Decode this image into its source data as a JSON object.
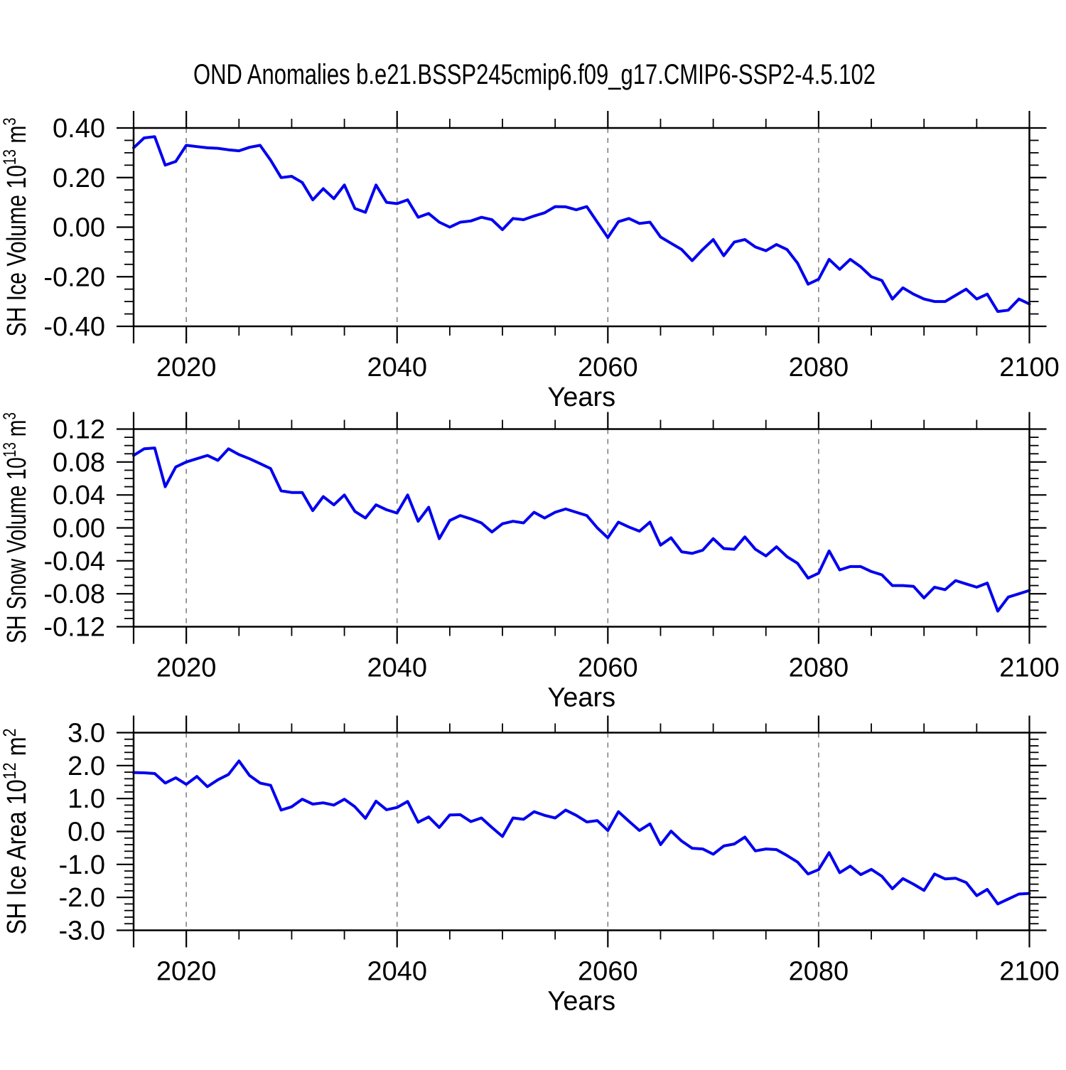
{
  "title": "OND Anomalies b.e21.BSSP245cmip6.f09_g17.CMIP6-SSP2-4.5.102",
  "colors": {
    "line": "#0000EE",
    "axis": "#000000",
    "grid": "#7a7a7a",
    "background": "#ffffff"
  },
  "x_axis": {
    "label": "Years",
    "range": [
      2015,
      2100
    ],
    "major_ticks": [
      2020,
      2040,
      2060,
      2080,
      2100
    ],
    "minor_step": 5,
    "gridlines": [
      2020,
      2040,
      2060,
      2080
    ]
  },
  "chart_data": [
    {
      "type": "line",
      "id": "ice-volume",
      "ylabel": "SH Ice Volume 10^{13} m^{3}",
      "ylim": [
        -0.4,
        0.4
      ],
      "ytick_values": [
        0.4,
        0.2,
        0.0,
        -0.2,
        -0.4
      ],
      "ytick_labels": [
        "0.40",
        "0.20",
        "0.00",
        "-0.20",
        "-0.40"
      ],
      "yminor_step": 0.05,
      "x_start": 2015,
      "x_step": 1,
      "values": [
        0.32,
        0.36,
        0.365,
        0.25,
        0.265,
        0.33,
        0.325,
        0.32,
        0.318,
        0.312,
        0.308,
        0.322,
        0.33,
        0.27,
        0.2,
        0.205,
        0.18,
        0.11,
        0.155,
        0.115,
        0.17,
        0.075,
        0.06,
        0.17,
        0.1,
        0.095,
        0.11,
        0.04,
        0.055,
        0.02,
        0.0,
        0.02,
        0.025,
        0.04,
        0.03,
        -0.01,
        0.035,
        0.03,
        0.045,
        0.058,
        0.083,
        0.082,
        0.07,
        0.083,
        0.02,
        -0.042,
        0.022,
        0.035,
        0.015,
        0.02,
        -0.04,
        -0.065,
        -0.09,
        -0.135,
        -0.09,
        -0.05,
        -0.115,
        -0.06,
        -0.05,
        -0.08,
        -0.095,
        -0.07,
        -0.09,
        -0.145,
        -0.23,
        -0.21,
        -0.13,
        -0.17,
        -0.13,
        -0.16,
        -0.2,
        -0.215,
        -0.29,
        -0.245,
        -0.27,
        -0.29,
        -0.3,
        -0.3,
        -0.275,
        -0.25,
        -0.29,
        -0.27,
        -0.34,
        -0.335,
        -0.29,
        -0.31
      ]
    },
    {
      "type": "line",
      "id": "snow-volume",
      "ylabel": "SH Snow Volume 10^{13} m^{3}",
      "ylim": [
        -0.12,
        0.12
      ],
      "ytick_values": [
        0.12,
        0.08,
        0.04,
        0.0,
        -0.04,
        -0.08,
        -0.12
      ],
      "ytick_labels": [
        "0.12",
        "0.08",
        "0.04",
        "0.00",
        "-0.04",
        "-0.08",
        "-0.12"
      ],
      "yminor_step": 0.01,
      "x_start": 2015,
      "x_step": 1,
      "values": [
        0.088,
        0.096,
        0.097,
        0.05,
        0.074,
        0.08,
        0.084,
        0.088,
        0.082,
        0.096,
        0.089,
        0.084,
        0.078,
        0.072,
        0.045,
        0.043,
        0.043,
        0.021,
        0.038,
        0.028,
        0.04,
        0.02,
        0.012,
        0.028,
        0.022,
        0.018,
        0.04,
        0.008,
        0.025,
        -0.013,
        0.009,
        0.015,
        0.011,
        0.006,
        -0.005,
        0.005,
        0.008,
        0.006,
        0.019,
        0.012,
        0.019,
        0.023,
        0.019,
        0.015,
        0.0,
        -0.012,
        0.007,
        0.001,
        -0.004,
        0.007,
        -0.021,
        -0.012,
        -0.029,
        -0.031,
        -0.027,
        -0.013,
        -0.025,
        -0.026,
        -0.011,
        -0.026,
        -0.034,
        -0.023,
        -0.035,
        -0.043,
        -0.061,
        -0.055,
        -0.028,
        -0.051,
        -0.047,
        -0.047,
        -0.053,
        -0.057,
        -0.07,
        -0.07,
        -0.071,
        -0.085,
        -0.072,
        -0.075,
        -0.064,
        -0.068,
        -0.072,
        -0.067,
        -0.101,
        -0.084,
        -0.08,
        -0.076
      ]
    },
    {
      "type": "line",
      "id": "ice-area",
      "ylabel": "SH Ice Area 10^{12} m^{2}",
      "ylim": [
        -3.0,
        3.0
      ],
      "ytick_values": [
        3.0,
        2.0,
        1.0,
        0.0,
        -1.0,
        -2.0,
        -3.0
      ],
      "ytick_labels": [
        "3.0",
        "2.0",
        "1.0",
        "0.0",
        "-1.0",
        "-2.0",
        "-3.0"
      ],
      "yminor_step": 0.2,
      "x_start": 2015,
      "x_step": 1,
      "values": [
        1.79,
        1.78,
        1.76,
        1.47,
        1.63,
        1.43,
        1.67,
        1.36,
        1.57,
        1.73,
        2.14,
        1.7,
        1.47,
        1.4,
        0.65,
        0.75,
        0.98,
        0.83,
        0.87,
        0.8,
        0.98,
        0.75,
        0.4,
        0.92,
        0.66,
        0.73,
        0.91,
        0.28,
        0.44,
        0.12,
        0.5,
        0.51,
        0.3,
        0.41,
        0.12,
        -0.15,
        0.41,
        0.37,
        0.6,
        0.49,
        0.41,
        0.65,
        0.49,
        0.29,
        0.33,
        0.03,
        0.6,
        0.31,
        0.03,
        0.23,
        -0.4,
        0.01,
        -0.29,
        -0.51,
        -0.53,
        -0.69,
        -0.44,
        -0.38,
        -0.17,
        -0.59,
        -0.53,
        -0.55,
        -0.73,
        -0.93,
        -1.29,
        -1.16,
        -0.64,
        -1.25,
        -1.05,
        -1.31,
        -1.15,
        -1.36,
        -1.74,
        -1.43,
        -1.6,
        -1.79,
        -1.29,
        -1.44,
        -1.42,
        -1.55,
        -1.95,
        -1.76,
        -2.2,
        -2.05,
        -1.9,
        -1.88
      ]
    }
  ]
}
